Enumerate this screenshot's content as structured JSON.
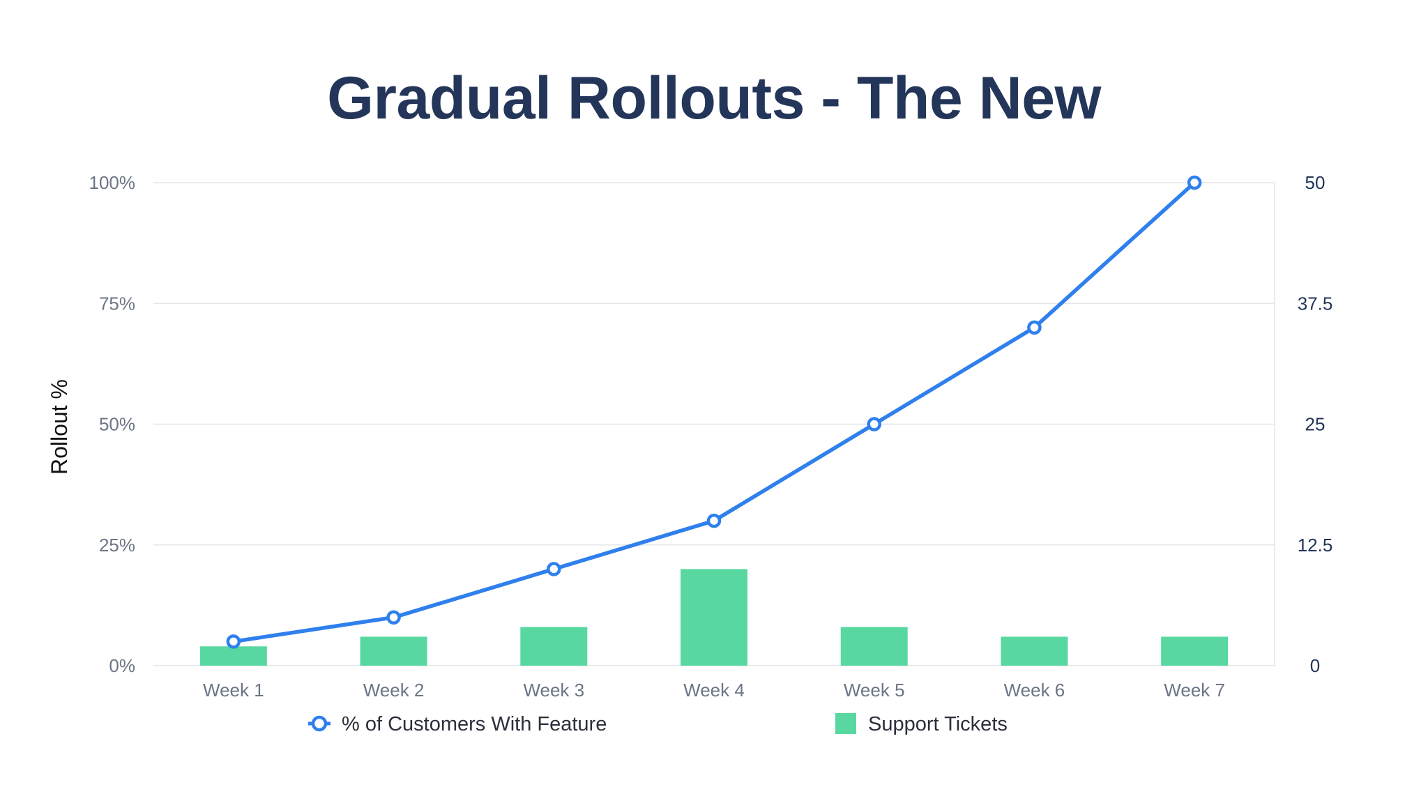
{
  "chart_data": {
    "type": "bar+line",
    "title": "Gradual Rollouts - The New",
    "categories": [
      "Week 1",
      "Week 2",
      "Week 3",
      "Week 4",
      "Week 5",
      "Week 6",
      "Week 7"
    ],
    "series": [
      {
        "name": "% of Customers With Feature",
        "type": "line",
        "axis": "left",
        "values": [
          5,
          10,
          20,
          30,
          50,
          70,
          100
        ]
      },
      {
        "name": "Support Tickets",
        "type": "bar",
        "axis": "right",
        "values": [
          2,
          3,
          4,
          10,
          4,
          3,
          3
        ]
      }
    ],
    "ylabel": "Rollout %",
    "ylim_left": [
      0,
      100
    ],
    "ylim_right": [
      0,
      50
    ],
    "yticks_left": [
      "0%",
      "25%",
      "50%",
      "75%",
      "100%"
    ],
    "yticks_right": [
      "0",
      "12.5",
      "25",
      "37.5",
      "50"
    ],
    "grid": true,
    "legend_position": "bottom"
  },
  "colors": {
    "line": "#2f80ed",
    "bar": "#58d8a0",
    "title": "#233559",
    "grid": "#e3e6ea"
  }
}
